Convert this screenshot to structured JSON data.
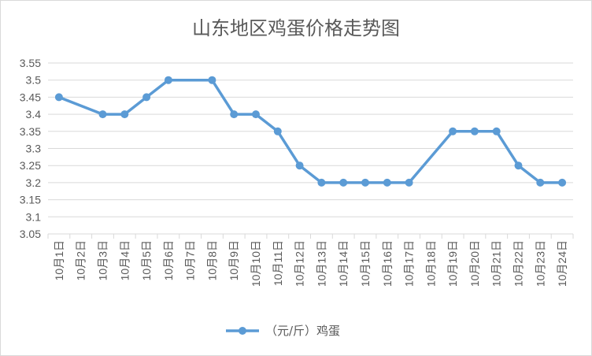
{
  "chart_data": {
    "type": "line",
    "title": "山东地区鸡蛋价格走势图",
    "categories": [
      "10月1日",
      "10月2日",
      "10月3日",
      "10月4日",
      "10月5日",
      "10月6日",
      "10月7日",
      "10月8日",
      "10月9日",
      "10月10日",
      "10月11日",
      "10月12日",
      "10月13日",
      "10月14日",
      "10月15日",
      "10月16日",
      "10月17日",
      "10月18日",
      "10月19日",
      "10月20日",
      "10月21日",
      "10月22日",
      "10月23日",
      "10月24日"
    ],
    "series": [
      {
        "name": "（元/斤）鸡蛋",
        "values": [
          3.45,
          null,
          3.4,
          3.4,
          3.45,
          3.5,
          null,
          3.5,
          3.4,
          3.4,
          3.35,
          3.25,
          3.2,
          3.2,
          3.2,
          3.2,
          3.2,
          null,
          3.35,
          3.35,
          3.35,
          3.25,
          3.2,
          3.2
        ],
        "color": "#5b9bd5"
      }
    ],
    "yticks": [
      "3.05",
      "3.1",
      "3.15",
      "3.2",
      "3.25",
      "3.3",
      "3.35",
      "3.4",
      "3.45",
      "3.5",
      "3.55"
    ],
    "ylim": [
      3.05,
      3.55
    ],
    "grid": true,
    "legend_position": "bottom"
  }
}
